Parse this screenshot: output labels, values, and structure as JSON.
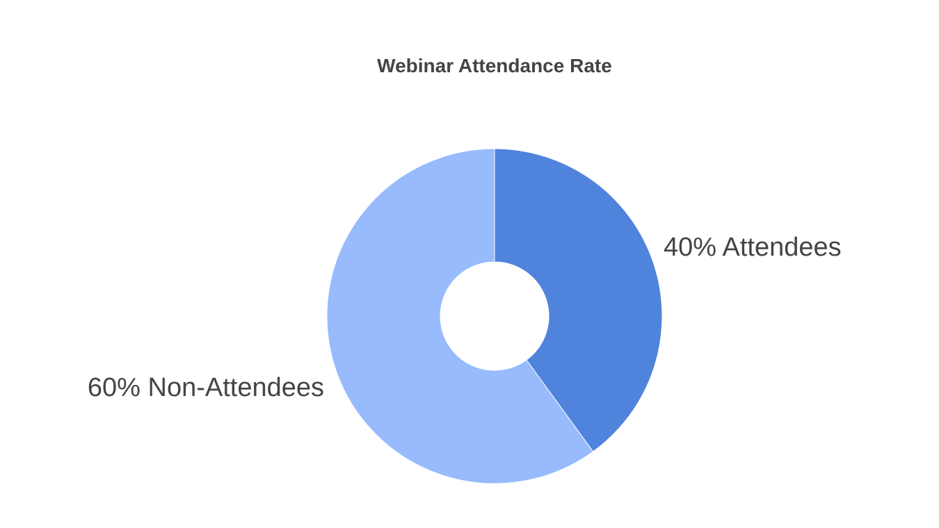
{
  "chart_data": {
    "type": "pie",
    "title": "Webinar Attendance Rate",
    "donut": true,
    "slices": [
      {
        "name": "Attendees",
        "value": 40,
        "label": "40% Attendees",
        "color": "#5083db"
      },
      {
        "name": "Non-Attendees",
        "value": 60,
        "label": "60% Non-Attendees",
        "color": "#97bbfd"
      }
    ]
  }
}
